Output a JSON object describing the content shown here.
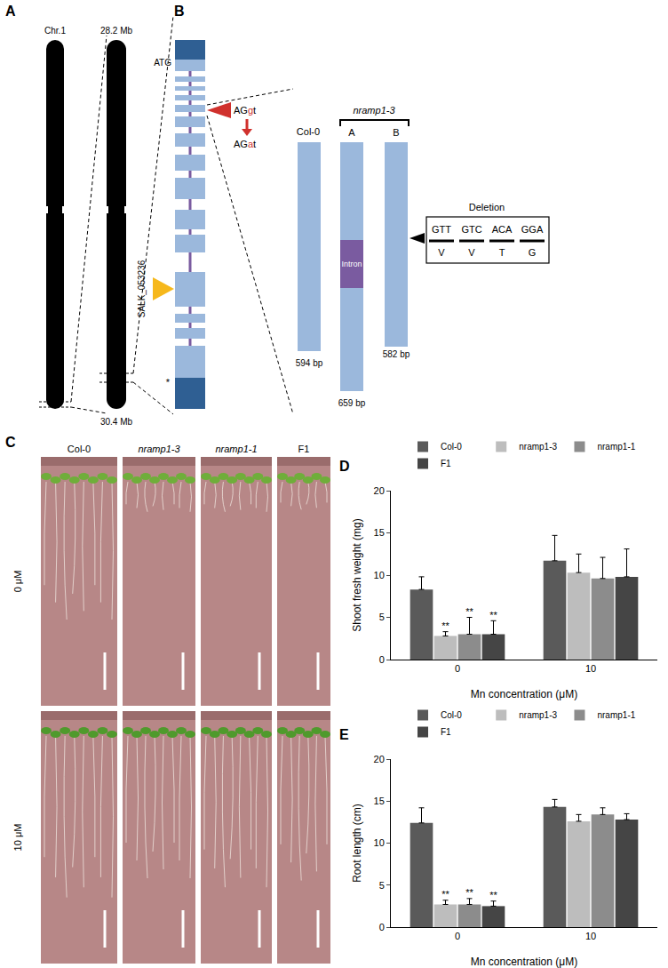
{
  "panels": {
    "A": {
      "letter": "A",
      "chromosome": "Chr.1",
      "region_start": "28.2 Mb",
      "region_end": "30.4 Mb"
    },
    "B": {
      "letter": "B",
      "start_codon": "ATG",
      "stop_codon": "*",
      "splice_wt": "AGgt",
      "splice_mut": "AGat",
      "t_dna": "SALK_053236",
      "wt": {
        "name": "Col-0",
        "size": "594 bp"
      },
      "mutant": "nramp1-3",
      "transcripts": [
        {
          "name": "A",
          "size": "659 bp",
          "insert": "Intron"
        },
        {
          "name": "B",
          "size": "582 bp"
        }
      ],
      "deletion": {
        "title": "Deletion",
        "codons": [
          "GTT",
          "GTC",
          "ACA",
          "GGA"
        ],
        "amino_acids": [
          "V",
          "V",
          "T",
          "G"
        ]
      }
    },
    "C": {
      "letter": "C",
      "genotypes": [
        "Col-0",
        "nramp1-3",
        "nramp1-1",
        "F1"
      ],
      "conditions": [
        "0 μM",
        "10 μM"
      ]
    }
  },
  "chart_data": [
    {
      "type": "bar",
      "panel_label": "D",
      "x_label": "Mn concentration (μM)",
      "y_label": "Shoot fresh weight (mg)",
      "categories": [
        "0",
        "10"
      ],
      "series": [
        {
          "name": "Col-0",
          "color": "#5a5a5a",
          "values": [
            8.3,
            11.7
          ],
          "errors": [
            1.5,
            3.0
          ],
          "significance": [
            null,
            null
          ]
        },
        {
          "name": "nramp1-3",
          "color": "#bdbdbd",
          "values": [
            2.8,
            10.3
          ],
          "errors": [
            0.5,
            2.2
          ],
          "significance": [
            "**",
            null
          ]
        },
        {
          "name": "nramp1-1",
          "color": "#8c8c8c",
          "values": [
            3.0,
            9.6
          ],
          "errors": [
            2.0,
            2.5
          ],
          "significance": [
            "**",
            null
          ]
        },
        {
          "name": "F1",
          "color": "#454545",
          "values": [
            3.0,
            9.8
          ],
          "errors": [
            1.6,
            3.3
          ],
          "significance": [
            "**",
            null
          ]
        }
      ],
      "ylim": [
        0,
        20
      ],
      "yticks": [
        0,
        5,
        10,
        15,
        20
      ],
      "legend": "top",
      "grid": false
    },
    {
      "type": "bar",
      "panel_label": "E",
      "x_label": "Mn concentration (μM)",
      "y_label": "Root length (cm)",
      "categories": [
        "0",
        "10"
      ],
      "series": [
        {
          "name": "Col-0",
          "color": "#5a5a5a",
          "values": [
            12.4,
            14.3
          ],
          "errors": [
            1.8,
            0.9
          ],
          "significance": [
            null,
            null
          ]
        },
        {
          "name": "nramp1-3",
          "color": "#bdbdbd",
          "values": [
            2.7,
            12.6
          ],
          "errors": [
            0.5,
            0.8
          ],
          "significance": [
            "**",
            null
          ]
        },
        {
          "name": "nramp1-1",
          "color": "#8c8c8c",
          "values": [
            2.7,
            13.4
          ],
          "errors": [
            0.7,
            0.8
          ],
          "significance": [
            "**",
            null
          ]
        },
        {
          "name": "F1",
          "color": "#454545",
          "values": [
            2.5,
            12.8
          ],
          "errors": [
            0.6,
            0.7
          ],
          "significance": [
            "**",
            null
          ]
        }
      ],
      "ylim": [
        0,
        20
      ],
      "yticks": [
        0,
        5,
        10,
        15,
        20
      ],
      "legend": "top",
      "grid": false
    }
  ]
}
